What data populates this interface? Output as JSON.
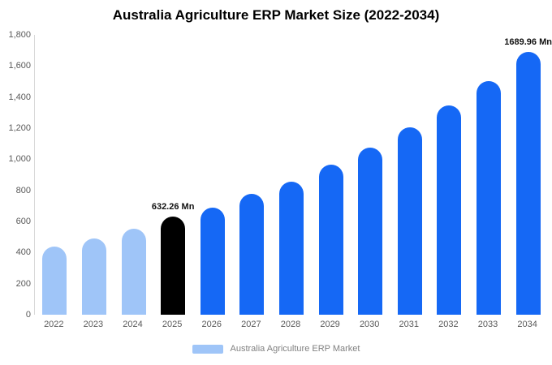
{
  "chart_data": {
    "type": "bar",
    "title": "Australia Agriculture ERP Market Size (2022-2034)",
    "categories": [
      "2022",
      "2023",
      "2024",
      "2025",
      "2026",
      "2027",
      "2028",
      "2029",
      "2030",
      "2031",
      "2032",
      "2033",
      "2034"
    ],
    "values": [
      440,
      490,
      555,
      632.26,
      690,
      775,
      855,
      965,
      1075,
      1205,
      1345,
      1505,
      1689.96
    ],
    "ylim": [
      0,
      1800
    ],
    "ylabel": "",
    "xlabel": "",
    "grid": false,
    "legend_position": "bottom",
    "y_ticks": [
      {
        "v": 0,
        "label": "0"
      },
      {
        "v": 200,
        "label": "200"
      },
      {
        "v": 400,
        "label": "400"
      },
      {
        "v": 600,
        "label": "600"
      },
      {
        "v": 800,
        "label": "800"
      },
      {
        "v": 1000,
        "label": "1,000"
      },
      {
        "v": 1200,
        "label": "1,200"
      },
      {
        "v": 1400,
        "label": "1,400"
      },
      {
        "v": 1600,
        "label": "1,600"
      },
      {
        "v": 1800,
        "label": "1,800"
      }
    ],
    "bar_colors": [
      "#9fc5f8",
      "#9fc5f8",
      "#9fc5f8",
      "#000000",
      "#1568f5",
      "#1568f5",
      "#1568f5",
      "#1568f5",
      "#1568f5",
      "#1568f5",
      "#1568f5",
      "#1568f5",
      "#1568f5"
    ],
    "annotations": [
      {
        "category": "2025",
        "text": "632.26 Mn"
      },
      {
        "category": "2034",
        "text": "1689.96 Mn"
      }
    ]
  },
  "legend": {
    "label": "Australia Agriculture ERP Market",
    "swatch_color": "#9fc5f8"
  }
}
